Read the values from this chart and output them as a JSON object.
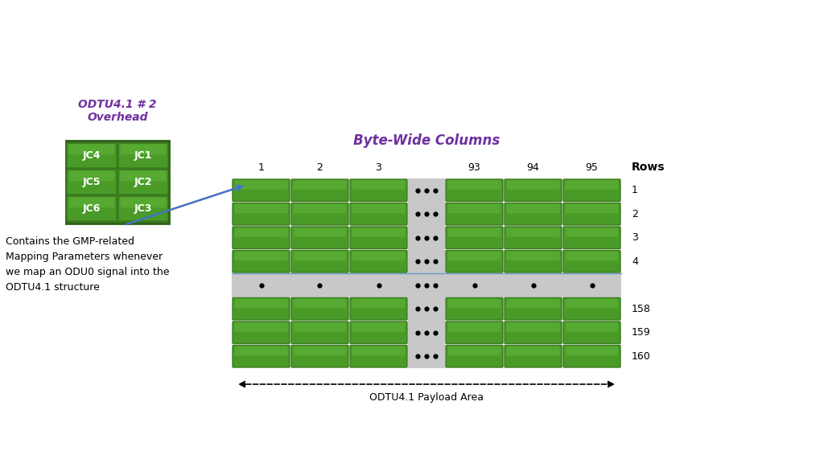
{
  "bg_color": "#ffffff",
  "green_dark": "#3a7a1e",
  "green_light": "#4a9a28",
  "green_border": "#2d6015",
  "gray_col": "#c8c8c8",
  "blue_arrow": "#4472c4",
  "title_color": "#7030a0",
  "overhead_title": "ODTU4.1 # 2\nOverhead",
  "byte_wide_title": "Byte-Wide Columns",
  "rows_label": "Rows",
  "overhead_cells": [
    [
      "JC4",
      "JC1"
    ],
    [
      "JC5",
      "JC2"
    ],
    [
      "JC6",
      "JC3"
    ]
  ],
  "col_labels": [
    "1",
    "2",
    "3",
    "93",
    "94",
    "95"
  ],
  "row_labels": [
    "1",
    "2",
    "3",
    "4",
    "158",
    "159",
    "160"
  ],
  "annotation_text": "Contains the GMP-related\nMapping Parameters whenever\nwe map an ODU0 signal into the\nODTU4.1 structure",
  "payload_label": "ODTU4.1 Payload Area"
}
